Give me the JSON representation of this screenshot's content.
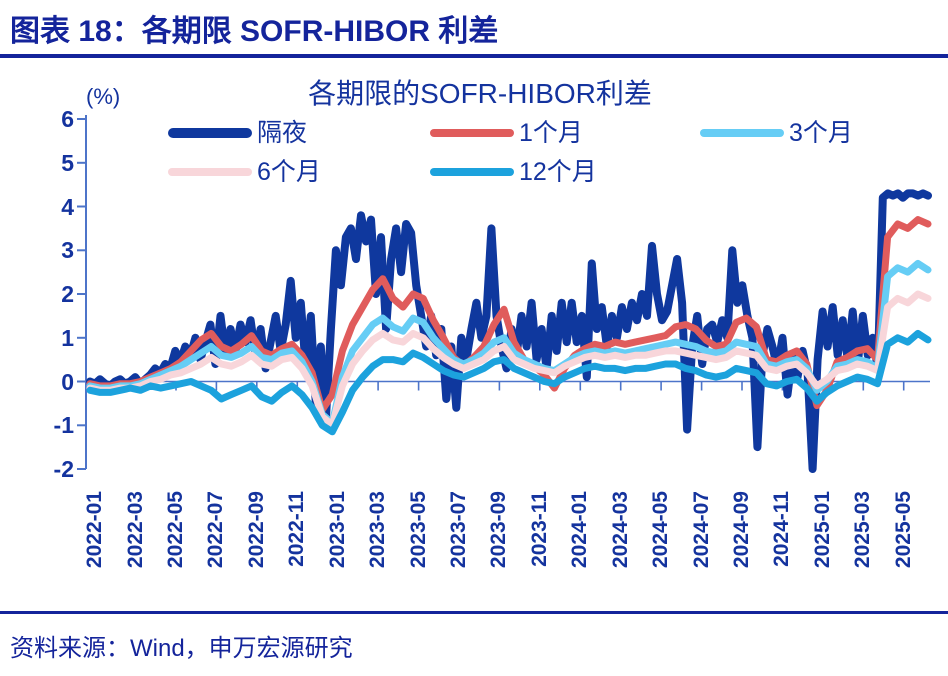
{
  "figure": {
    "title": "图表 18：各期限 SOFR-HIBOR 利差",
    "source": "资料来源：Wind，申万宏源研究"
  },
  "colors": {
    "navy_text": "#14249b",
    "axis": "#4d74c9"
  },
  "chart_data": {
    "type": "line",
    "title": "各期限的SOFR-HIBOR利差",
    "unit_label": "(%)",
    "xlabel": "",
    "ylabel": "%",
    "ylim": [
      -2,
      6
    ],
    "y_ticks": [
      6,
      5,
      4,
      3,
      2,
      1,
      0,
      -1,
      -2
    ],
    "x_ticks": [
      "2022-01",
      "2022-03",
      "2022-05",
      "2022-07",
      "2022-09",
      "2022-11",
      "2023-01",
      "2023-03",
      "2023-05",
      "2023-07",
      "2023-09",
      "2023-11",
      "2024-01",
      "2024-03",
      "2024-05",
      "2024-07",
      "2024-09",
      "2024-11",
      "2025-01",
      "2025-03",
      "2025-05"
    ],
    "x_range": [
      "2022-01",
      "2025-06"
    ],
    "grid": false,
    "legend_position": "top",
    "axis_color": "#4d74c9",
    "series": [
      {
        "name": "隔夜",
        "color": "#0f389e",
        "width": 8,
        "points_per_month": 4,
        "values": [
          0.0,
          -0.05,
          0.05,
          -0.05,
          -0.1,
          0.0,
          0.05,
          -0.05,
          0.0,
          0.1,
          -0.05,
          0.05,
          0.15,
          0.3,
          0.2,
          0.4,
          0.3,
          0.7,
          0.45,
          0.8,
          0.6,
          1.0,
          0.5,
          0.9,
          1.3,
          0.4,
          1.5,
          0.6,
          1.2,
          0.7,
          1.3,
          0.9,
          1.4,
          0.6,
          1.2,
          0.3,
          0.9,
          1.5,
          0.7,
          1.3,
          2.3,
          1.0,
          1.8,
          0.3,
          1.5,
          -0.5,
          0.8,
          -0.9,
          1.2,
          3.0,
          2.2,
          3.3,
          3.5,
          2.8,
          3.8,
          3.2,
          3.7,
          2.0,
          3.3,
          1.2,
          2.8,
          3.5,
          2.5,
          3.6,
          3.4,
          2.2,
          1.5,
          0.8,
          1.5,
          0.6,
          1.2,
          -0.4,
          0.8,
          -0.6,
          1.0,
          0.5,
          1.2,
          1.8,
          1.0,
          1.5,
          3.5,
          1.5,
          0.8,
          0.3,
          1.2,
          0.6,
          1.5,
          0.8,
          1.8,
          0.5,
          1.2,
          0.3,
          1.5,
          0.7,
          1.8,
          0.9,
          1.8,
          0.9,
          1.5,
          0.1,
          2.7,
          1.2,
          1.7,
          0.8,
          1.5,
          1.0,
          1.7,
          1.2,
          1.8,
          1.4,
          2.0,
          1.5,
          3.1,
          2.0,
          1.4,
          1.6,
          2.2,
          2.8,
          1.8,
          -1.1,
          0.8,
          1.5,
          0.4,
          1.2,
          1.3,
          0.9,
          1.4,
          1.0,
          3.0,
          1.8,
          2.2,
          1.5,
          1.0,
          -1.5,
          0.6,
          1.2,
          0.8,
          0.3,
          1.0,
          -0.3,
          0.6,
          0.1,
          0.7,
          0.2,
          -2.0,
          0.5,
          1.6,
          0.8,
          1.7,
          0.6,
          1.4,
          0.5,
          1.6,
          0.4,
          1.5,
          0.6,
          1.0,
          0.3,
          4.2,
          4.3,
          4.25,
          4.3,
          4.2,
          4.3,
          4.3,
          4.25,
          4.3,
          4.25
        ]
      },
      {
        "name": "1个月",
        "color": "#e05c5c",
        "width": 7,
        "points_per_month": 2,
        "values": [
          -0.05,
          -0.1,
          -0.1,
          -0.05,
          -0.05,
          0.0,
          0.1,
          0.2,
          0.3,
          0.45,
          0.7,
          0.95,
          1.1,
          0.8,
          0.7,
          0.85,
          1.05,
          0.7,
          0.6,
          0.75,
          0.85,
          0.6,
          0.2,
          -0.65,
          -0.3,
          0.7,
          1.3,
          1.7,
          2.1,
          2.35,
          1.9,
          1.7,
          2.0,
          1.9,
          1.4,
          1.0,
          0.55,
          0.35,
          0.55,
          0.8,
          1.3,
          1.65,
          0.9,
          0.5,
          0.35,
          0.15,
          -0.15,
          0.3,
          0.6,
          0.75,
          0.85,
          0.8,
          0.9,
          0.85,
          0.9,
          0.95,
          1.0,
          1.05,
          1.25,
          1.3,
          1.2,
          0.95,
          0.8,
          0.85,
          1.35,
          1.45,
          1.25,
          0.5,
          0.45,
          0.6,
          0.7,
          0.4,
          -0.55,
          -0.2,
          0.45,
          0.55,
          0.7,
          0.75,
          0.5,
          3.3,
          3.6,
          3.5,
          3.7,
          3.6
        ]
      },
      {
        "name": "3个月",
        "color": "#66cdf5",
        "width": 7,
        "points_per_month": 2,
        "values": [
          -0.1,
          -0.15,
          -0.15,
          -0.1,
          -0.1,
          -0.05,
          0.05,
          0.15,
          0.25,
          0.35,
          0.5,
          0.65,
          0.8,
          0.6,
          0.55,
          0.65,
          0.8,
          0.55,
          0.5,
          0.65,
          0.7,
          0.45,
          0.0,
          -0.75,
          -0.95,
          0.1,
          0.7,
          1.0,
          1.3,
          1.45,
          1.25,
          1.15,
          1.45,
          1.35,
          1.0,
          0.75,
          0.5,
          0.4,
          0.5,
          0.65,
          0.9,
          1.0,
          0.65,
          0.5,
          0.4,
          0.3,
          0.25,
          0.4,
          0.55,
          0.65,
          0.7,
          0.65,
          0.7,
          0.65,
          0.7,
          0.75,
          0.8,
          0.85,
          0.9,
          0.85,
          0.8,
          0.7,
          0.65,
          0.7,
          0.9,
          0.85,
          0.8,
          0.4,
          0.35,
          0.45,
          0.5,
          0.3,
          -0.2,
          0.0,
          0.35,
          0.4,
          0.5,
          0.45,
          0.3,
          2.4,
          2.6,
          2.5,
          2.7,
          2.55
        ]
      },
      {
        "name": "6个月",
        "color": "#f8d6da",
        "width": 7,
        "points_per_month": 2,
        "values": [
          -0.15,
          -0.2,
          -0.2,
          -0.15,
          -0.15,
          -0.1,
          0.0,
          0.05,
          0.15,
          0.2,
          0.3,
          0.4,
          0.55,
          0.4,
          0.35,
          0.45,
          0.6,
          0.4,
          0.35,
          0.5,
          0.55,
          0.3,
          -0.1,
          -0.8,
          -1.0,
          -0.1,
          0.4,
          0.7,
          0.95,
          1.1,
          0.95,
          0.9,
          1.1,
          1.0,
          0.75,
          0.55,
          0.4,
          0.3,
          0.4,
          0.5,
          0.7,
          0.8,
          0.5,
          0.4,
          0.3,
          0.25,
          0.2,
          0.35,
          0.45,
          0.55,
          0.6,
          0.55,
          0.6,
          0.55,
          0.6,
          0.6,
          0.65,
          0.7,
          0.7,
          0.65,
          0.6,
          0.55,
          0.5,
          0.55,
          0.7,
          0.65,
          0.6,
          0.3,
          0.25,
          0.35,
          0.4,
          0.2,
          -0.1,
          0.05,
          0.25,
          0.3,
          0.4,
          0.35,
          0.25,
          1.7,
          1.9,
          1.8,
          2.0,
          1.9
        ]
      },
      {
        "name": "12个月",
        "color": "#1ca2dd",
        "width": 7,
        "points_per_month": 2,
        "values": [
          -0.2,
          -0.25,
          -0.25,
          -0.2,
          -0.15,
          -0.2,
          -0.1,
          -0.15,
          -0.1,
          -0.05,
          0.0,
          -0.1,
          -0.2,
          -0.4,
          -0.3,
          -0.2,
          -0.1,
          -0.35,
          -0.45,
          -0.25,
          -0.1,
          -0.3,
          -0.6,
          -1.0,
          -1.15,
          -0.7,
          -0.2,
          0.1,
          0.35,
          0.5,
          0.5,
          0.45,
          0.65,
          0.55,
          0.4,
          0.25,
          0.15,
          0.1,
          0.2,
          0.3,
          0.45,
          0.5,
          0.3,
          0.2,
          0.1,
          0.0,
          -0.05,
          0.1,
          0.2,
          0.3,
          0.35,
          0.3,
          0.3,
          0.25,
          0.3,
          0.3,
          0.35,
          0.4,
          0.4,
          0.3,
          0.25,
          0.15,
          0.1,
          0.15,
          0.3,
          0.25,
          0.2,
          -0.05,
          -0.1,
          0.0,
          0.05,
          -0.15,
          -0.45,
          -0.25,
          -0.1,
          0.0,
          0.1,
          0.05,
          -0.05,
          0.85,
          1.0,
          0.9,
          1.1,
          0.95
        ]
      }
    ]
  }
}
